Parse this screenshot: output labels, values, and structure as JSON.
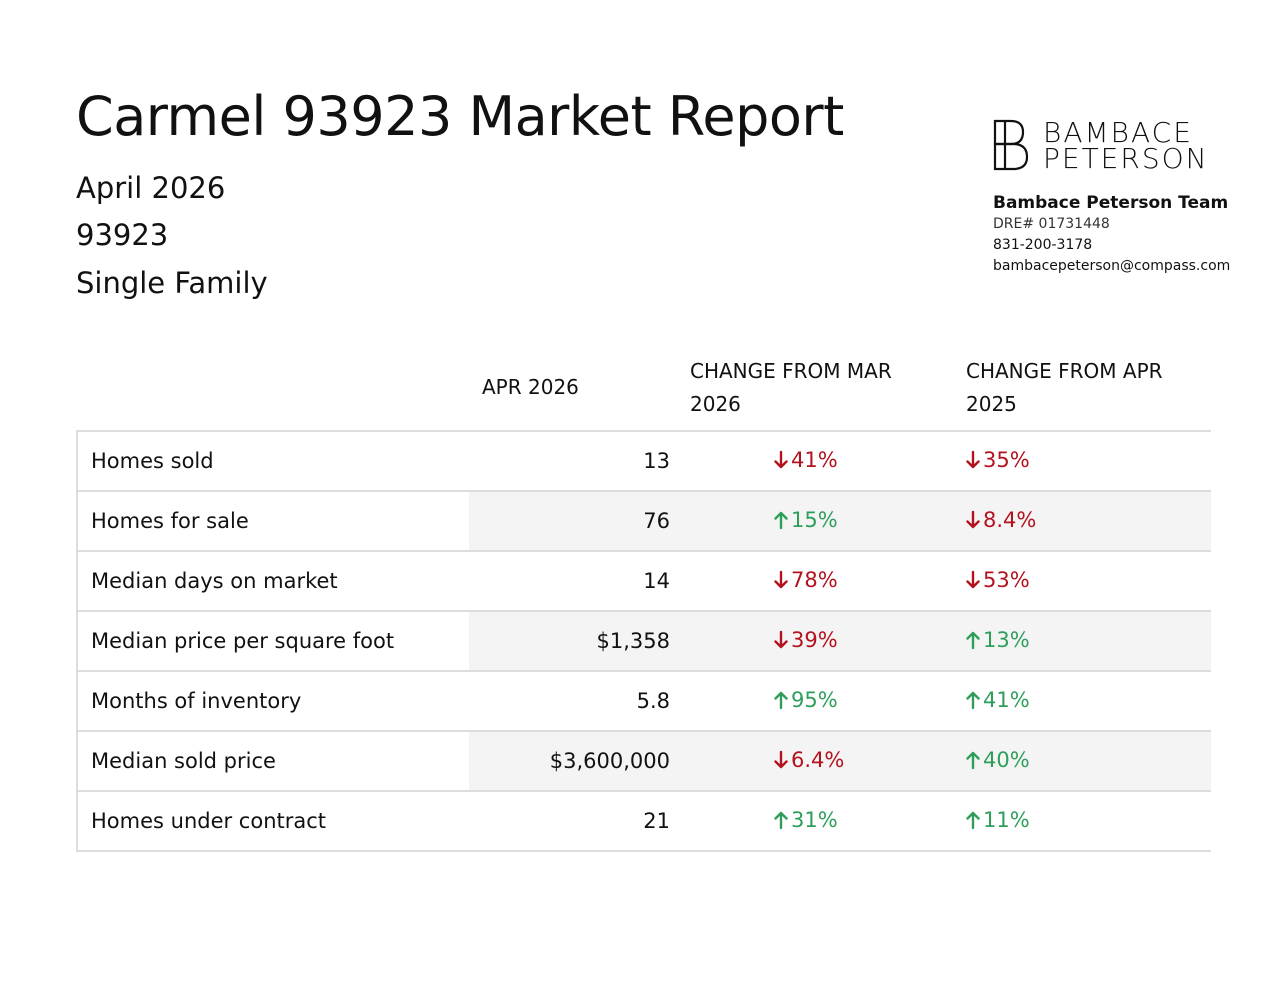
{
  "header": {
    "title": "Carmel 93923 Market Report",
    "date": "April 2026",
    "zip": "93923",
    "property_type": "Single Family"
  },
  "brand": {
    "logo_line1": "BAMBACE",
    "logo_line2": "PETERSON",
    "team_name": "Bambace Peterson Team",
    "dre": "DRE# 01731448",
    "phone": "831-200-3178",
    "email": "bambacepeterson@compass.com"
  },
  "colors": {
    "decrease": "#b3121f",
    "increase": "#2e9e5b",
    "row_shade": "#f4f4f4",
    "rule": "#dddddd"
  },
  "table": {
    "columns": {
      "metric": "",
      "current": "APR 2026",
      "change_prev_month": "CHANGE FROM MAR 2026",
      "change_prev_year": "CHANGE FROM APR 2025"
    },
    "rows": [
      {
        "metric": "Homes sold",
        "value": "13",
        "mom": "41%",
        "mom_dir": "down",
        "yoy": "35%",
        "yoy_dir": "down"
      },
      {
        "metric": "Homes for sale",
        "value": "76",
        "mom": "15%",
        "mom_dir": "up",
        "yoy": "8.4%",
        "yoy_dir": "down"
      },
      {
        "metric": "Median days on market",
        "value": "14",
        "mom": "78%",
        "mom_dir": "down",
        "yoy": "53%",
        "yoy_dir": "down"
      },
      {
        "metric": "Median price per square foot",
        "value": "$1,358",
        "mom": "39%",
        "mom_dir": "down",
        "yoy": "13%",
        "yoy_dir": "up"
      },
      {
        "metric": "Months of inventory",
        "value": "5.8",
        "mom": "95%",
        "mom_dir": "up",
        "yoy": "41%",
        "yoy_dir": "up"
      },
      {
        "metric": "Median sold price",
        "value": "$3,600,000",
        "mom": "6.4%",
        "mom_dir": "down",
        "yoy": "40%",
        "yoy_dir": "up"
      },
      {
        "metric": "Homes under contract",
        "value": "21",
        "mom": "31%",
        "mom_dir": "up",
        "yoy": "11%",
        "yoy_dir": "up"
      }
    ]
  }
}
